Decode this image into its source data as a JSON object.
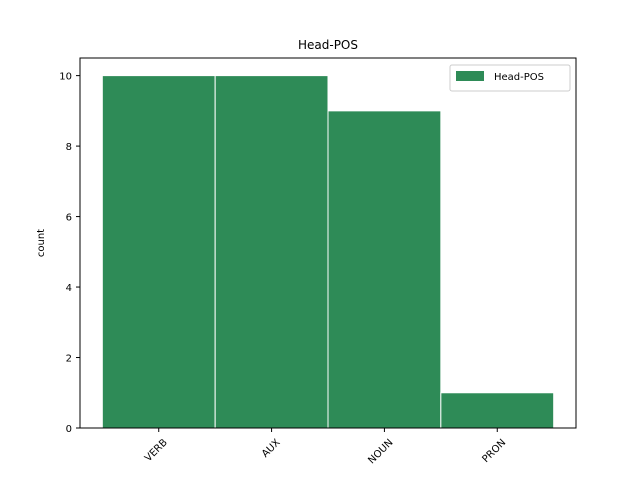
{
  "chart_data": {
    "type": "bar",
    "title": "Head-POS",
    "xlabel": "",
    "ylabel": "count",
    "categories": [
      "VERB",
      "AUX",
      "NOUN",
      "PRON"
    ],
    "series": [
      {
        "name": "Head-POS",
        "values": [
          10,
          10,
          9,
          1
        ],
        "color": "#2e8b57"
      }
    ],
    "ylim": [
      0,
      10.5
    ],
    "yticks": [
      0,
      2,
      4,
      6,
      8,
      10
    ],
    "grid": false,
    "legend": "top-right",
    "bar_edge_color": "#ffffff"
  }
}
